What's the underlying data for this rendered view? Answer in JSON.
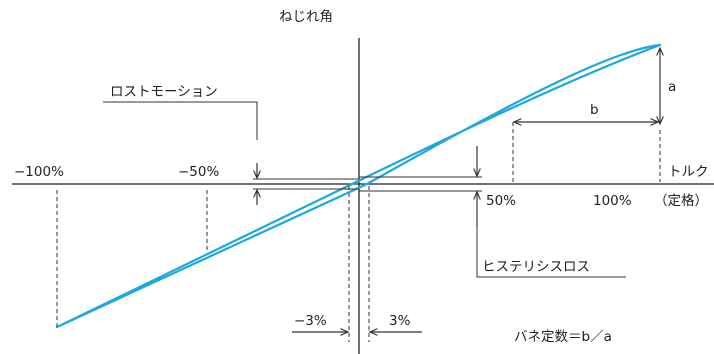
{
  "colors": {
    "curve": "#1ea8dc",
    "axis": "#222222",
    "line": "#333333"
  },
  "labels": {
    "y_axis": "ねじれ角",
    "x_axis": "トルク",
    "rated": "（定格）",
    "lost_motion": "ロストモーション",
    "hysteresis_loss": "ヒステリシスロス",
    "spring_constant": "バネ定数＝b／a",
    "a": "a",
    "b": "b"
  },
  "ticks": {
    "neg100": "−100%",
    "neg50": "−50%",
    "pos50": "50%",
    "pos100": "100%",
    "neg3": "−3%",
    "pos3": "3%"
  }
}
